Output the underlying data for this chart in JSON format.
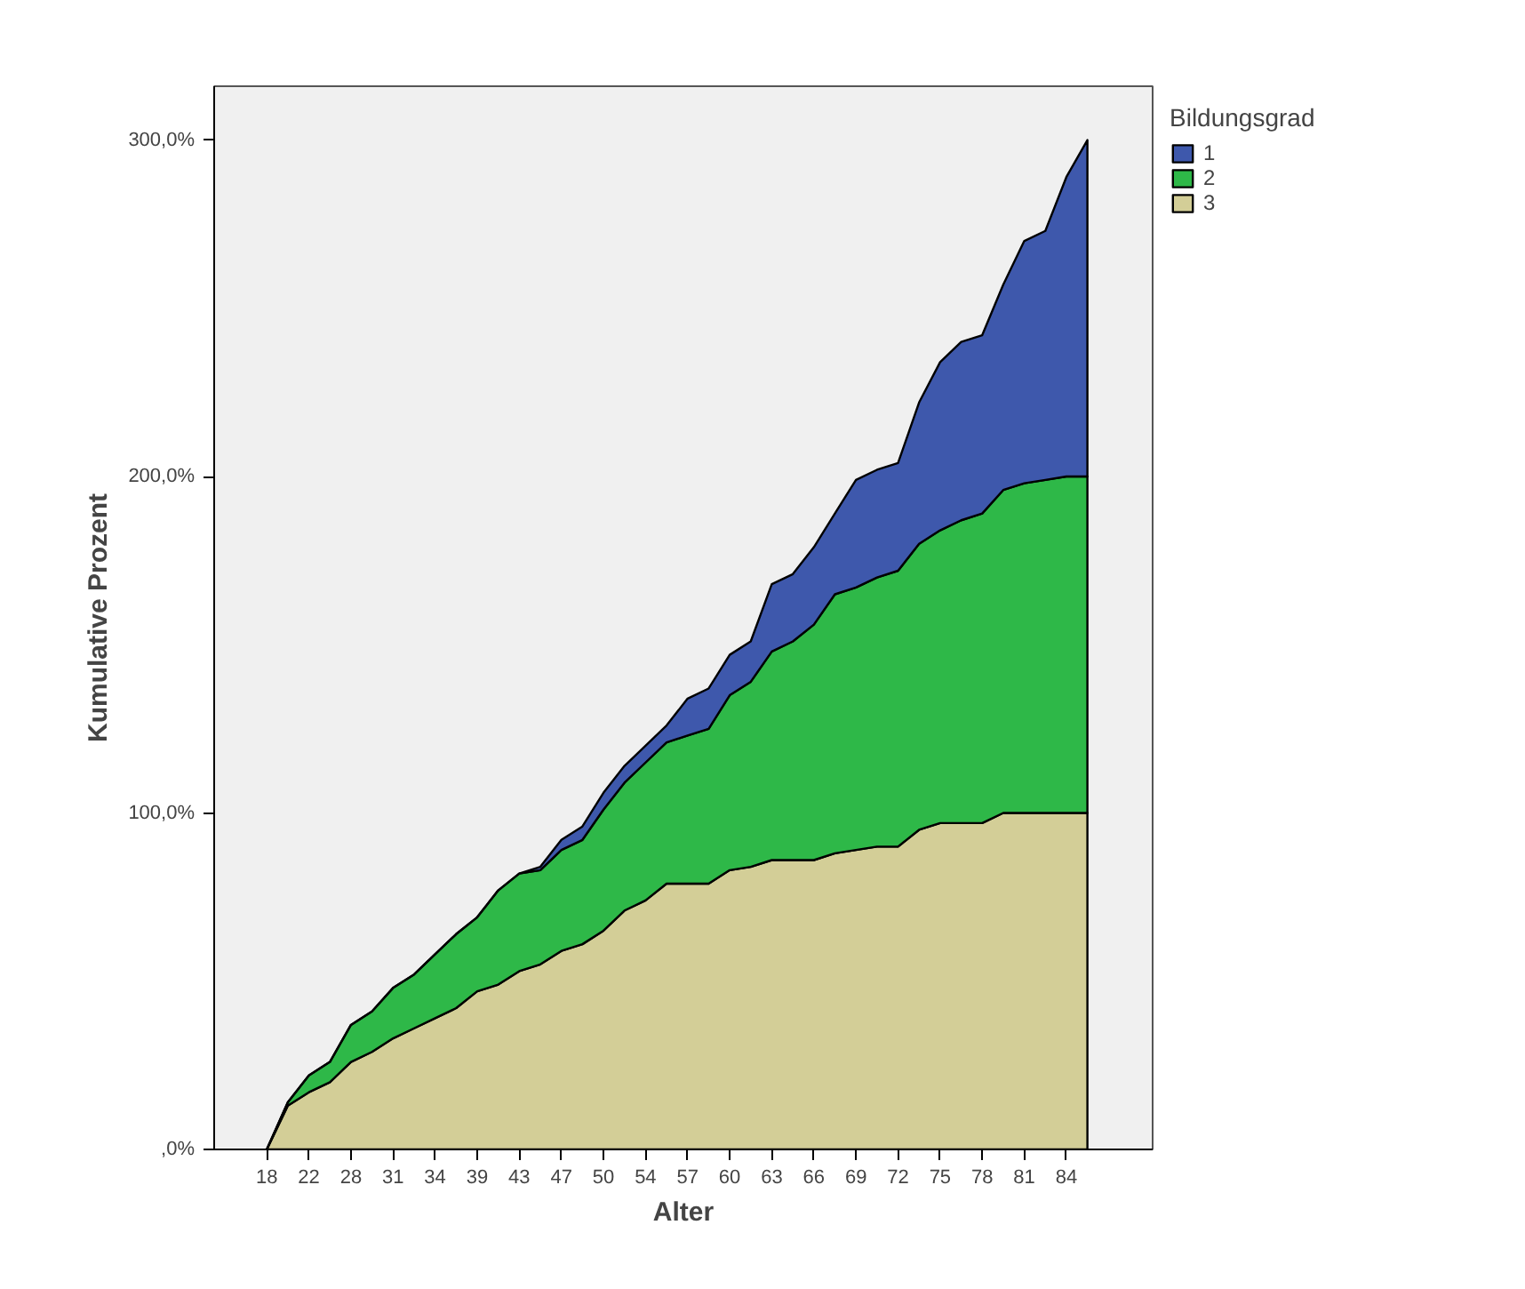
{
  "chart_data": {
    "type": "area",
    "stacked": true,
    "xlabel": "Alter",
    "ylabel": "Kumulative Prozent",
    "legend_title": "Bildungsgrad",
    "legend": "top right",
    "grid": false,
    "categories": [
      "18",
      null,
      "22",
      null,
      "28",
      null,
      "31",
      null,
      "34",
      null,
      "39",
      null,
      "43",
      null,
      "47",
      null,
      "50",
      null,
      "54",
      null,
      "57",
      null,
      "60",
      null,
      "63",
      null,
      "66",
      null,
      "69",
      null,
      "72",
      null,
      "75",
      null,
      "78",
      null,
      "81",
      null,
      "84",
      null
    ],
    "ylim": [
      0,
      316
    ],
    "yticks": [
      {
        "value": 0,
        "label": ",0%"
      },
      {
        "value": 100,
        "label": "100,0%"
      },
      {
        "value": 200,
        "label": "200,0%"
      },
      {
        "value": 300,
        "label": "300,0%"
      }
    ],
    "series": [
      {
        "name": "3",
        "color": "#d3ce97",
        "values": [
          0,
          13,
          17,
          20,
          26,
          29,
          33,
          36,
          39,
          42,
          47,
          49,
          53,
          55,
          59,
          61,
          65,
          71,
          74,
          79,
          79,
          79,
          83,
          84,
          86,
          86,
          86,
          88,
          89,
          90,
          90,
          95,
          97,
          97,
          97,
          100,
          100,
          100,
          100,
          100
        ]
      },
      {
        "name": "2",
        "color": "#2eb848",
        "values": [
          0,
          1,
          5,
          6,
          11,
          12,
          15,
          16,
          19,
          22,
          22,
          28,
          29,
          28,
          30,
          31,
          36,
          38,
          41,
          42,
          44,
          46,
          52,
          55,
          62,
          65,
          70,
          77,
          78,
          80,
          82,
          85,
          87,
          90,
          92,
          96,
          98,
          99,
          100,
          100
        ]
      },
      {
        "name": "1",
        "color": "#3e58ac",
        "values": [
          0,
          0,
          0,
          0,
          0,
          0,
          0,
          0,
          0,
          0,
          0,
          0,
          0,
          1,
          3,
          4,
          5,
          5,
          5,
          5,
          11,
          12,
          12,
          12,
          20,
          20,
          23,
          24,
          32,
          32,
          32,
          42,
          50,
          53,
          53,
          61,
          72,
          74,
          89,
          100
        ]
      }
    ]
  }
}
